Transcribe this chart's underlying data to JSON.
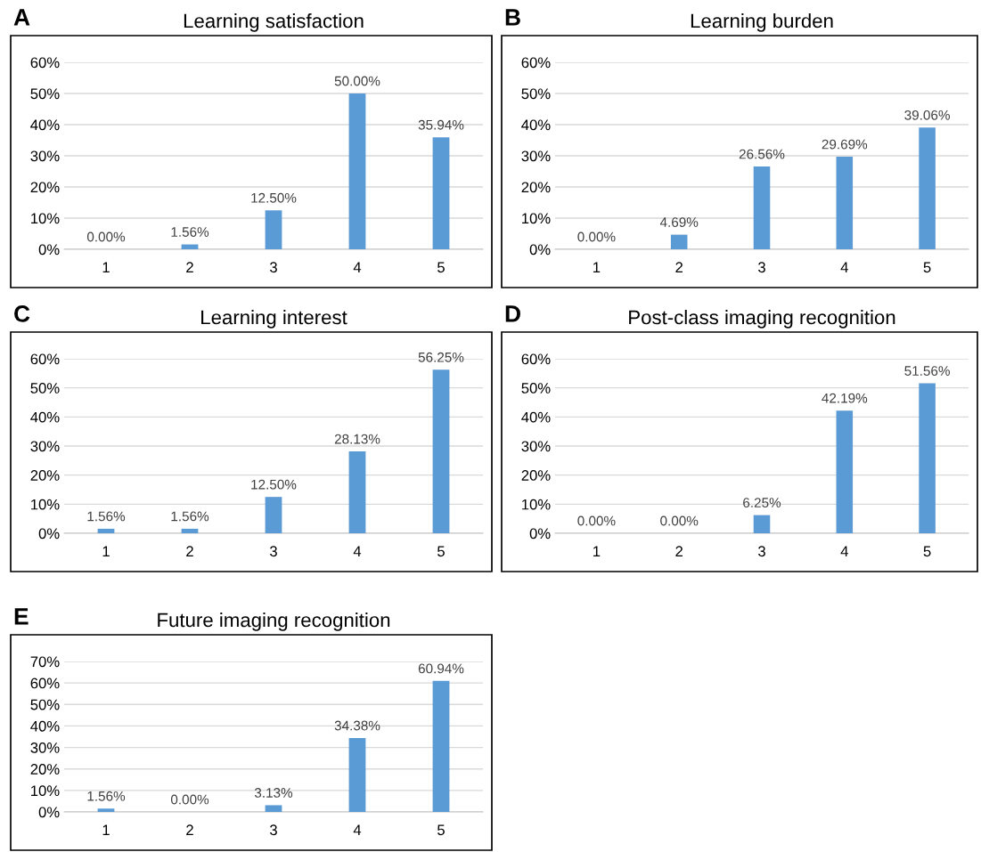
{
  "chart_data": [
    {
      "type": "bar",
      "title": "Learning satisfaction",
      "annotations": [
        "A"
      ],
      "categories": [
        "1",
        "2",
        "3",
        "4",
        "5"
      ],
      "values": [
        0,
        1.56,
        12.5,
        50,
        35.94
      ],
      "value_labels": [
        "0.00%",
        "1.56%",
        "12.50%",
        "50.00%",
        "35.94%"
      ],
      "color": "#5b9bd5",
      "ylim": [
        0,
        60
      ],
      "yticks": [
        {
          "value": 0,
          "label": "0%"
        },
        {
          "value": 10,
          "label": "10%"
        },
        {
          "value": 20,
          "label": "20%"
        },
        {
          "value": 30,
          "label": "30%"
        },
        {
          "value": 40,
          "label": "40%"
        },
        {
          "value": 50,
          "label": "50%"
        },
        {
          "value": 60,
          "label": "60%"
        }
      ],
      "grid": "y"
    },
    {
      "type": "bar",
      "title": "Learning burden",
      "annotations": [
        "B"
      ],
      "categories": [
        "1",
        "2",
        "3",
        "4",
        "5"
      ],
      "values": [
        0,
        4.69,
        26.56,
        29.69,
        39.06
      ],
      "value_labels": [
        "0.00%",
        "4.69%",
        "26.56%",
        "29.69%",
        "39.06%"
      ],
      "color": "#5b9bd5",
      "ylim": [
        0,
        60
      ],
      "yticks": [
        {
          "value": 0,
          "label": "0%"
        },
        {
          "value": 10,
          "label": "10%"
        },
        {
          "value": 20,
          "label": "20%"
        },
        {
          "value": 30,
          "label": "30%"
        },
        {
          "value": 40,
          "label": "40%"
        },
        {
          "value": 50,
          "label": "50%"
        },
        {
          "value": 60,
          "label": "60%"
        }
      ],
      "grid": "y"
    },
    {
      "type": "bar",
      "title": "Learning interest",
      "annotations": [
        "C"
      ],
      "categories": [
        "1",
        "2",
        "3",
        "4",
        "5"
      ],
      "values": [
        1.56,
        1.56,
        12.5,
        28.13,
        56.25
      ],
      "value_labels": [
        "1.56%",
        "1.56%",
        "12.50%",
        "28.13%",
        "56.25%"
      ],
      "color": "#5b9bd5",
      "ylim": [
        0,
        60
      ],
      "yticks": [
        {
          "value": 0,
          "label": "0%"
        },
        {
          "value": 10,
          "label": "10%"
        },
        {
          "value": 20,
          "label": "20%"
        },
        {
          "value": 30,
          "label": "30%"
        },
        {
          "value": 40,
          "label": "40%"
        },
        {
          "value": 50,
          "label": "50%"
        },
        {
          "value": 60,
          "label": "60%"
        }
      ],
      "grid": "y"
    },
    {
      "type": "bar",
      "title": "Post-class imaging recognition",
      "annotations": [
        "D"
      ],
      "categories": [
        "1",
        "2",
        "3",
        "4",
        "5"
      ],
      "values": [
        0,
        0,
        6.25,
        42.19,
        51.56
      ],
      "value_labels": [
        "0.00%",
        "0.00%",
        "6.25%",
        "42.19%",
        "51.56%"
      ],
      "color": "#5b9bd5",
      "ylim": [
        0,
        60
      ],
      "yticks": [
        {
          "value": 0,
          "label": "0%"
        },
        {
          "value": 10,
          "label": "10%"
        },
        {
          "value": 20,
          "label": "20%"
        },
        {
          "value": 30,
          "label": "30%"
        },
        {
          "value": 40,
          "label": "40%"
        },
        {
          "value": 50,
          "label": "50%"
        },
        {
          "value": 60,
          "label": "60%"
        }
      ],
      "grid": "y"
    },
    {
      "type": "bar",
      "title": "Future imaging recognition",
      "annotations": [
        "E"
      ],
      "categories": [
        "1",
        "2",
        "3",
        "4",
        "5"
      ],
      "values": [
        1.56,
        0,
        3.13,
        34.38,
        60.94
      ],
      "value_labels": [
        "1.56%",
        "0.00%",
        "3.13%",
        "34.38%",
        "60.94%"
      ],
      "color": "#5b9bd5",
      "ylim": [
        0,
        70
      ],
      "yticks": [
        {
          "value": 0,
          "label": "0%"
        },
        {
          "value": 10,
          "label": "10%"
        },
        {
          "value": 20,
          "label": "20%"
        },
        {
          "value": 30,
          "label": "30%"
        },
        {
          "value": 40,
          "label": "40%"
        },
        {
          "value": 50,
          "label": "50%"
        },
        {
          "value": 60,
          "label": "60%"
        },
        {
          "value": 70,
          "label": "70%"
        }
      ],
      "grid": "y"
    }
  ]
}
